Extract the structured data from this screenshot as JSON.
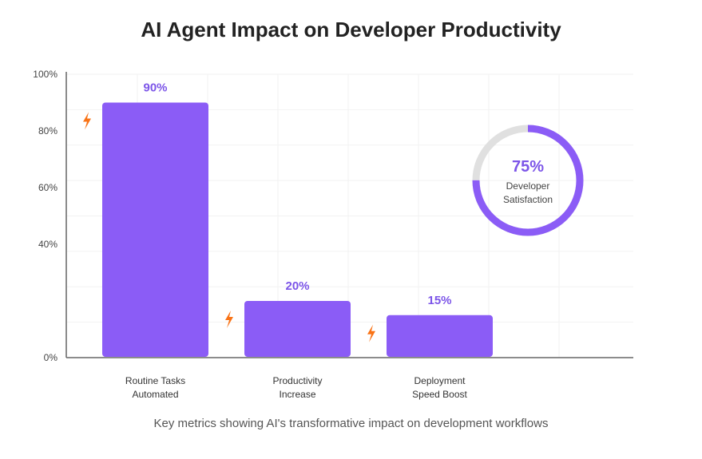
{
  "title": "AI Agent Impact on Developer Productivity",
  "subtitle": "Key metrics showing AI's transformative impact on development workflows",
  "colors": {
    "bar": "#8b5cf6",
    "label": "#7c55e8",
    "gauge_track": "#e0e0e0",
    "icon": "#f97316"
  },
  "chart_data": {
    "type": "bar",
    "categories": [
      [
        "Routine Tasks",
        "Automated"
      ],
      [
        "Productivity",
        "Increase"
      ],
      [
        "Deployment",
        "Speed Boost"
      ]
    ],
    "values": [
      90,
      20,
      15
    ],
    "data_labels": [
      "90%",
      "20%",
      "15%"
    ],
    "yticks": [
      "0%",
      "40%",
      "60%",
      "80%",
      "100%"
    ],
    "ylim": [
      0,
      100
    ],
    "icon": "lightning-icon",
    "gauge": {
      "value": 75,
      "label": "75%",
      "caption": [
        "Developer",
        "Satisfaction"
      ]
    }
  }
}
